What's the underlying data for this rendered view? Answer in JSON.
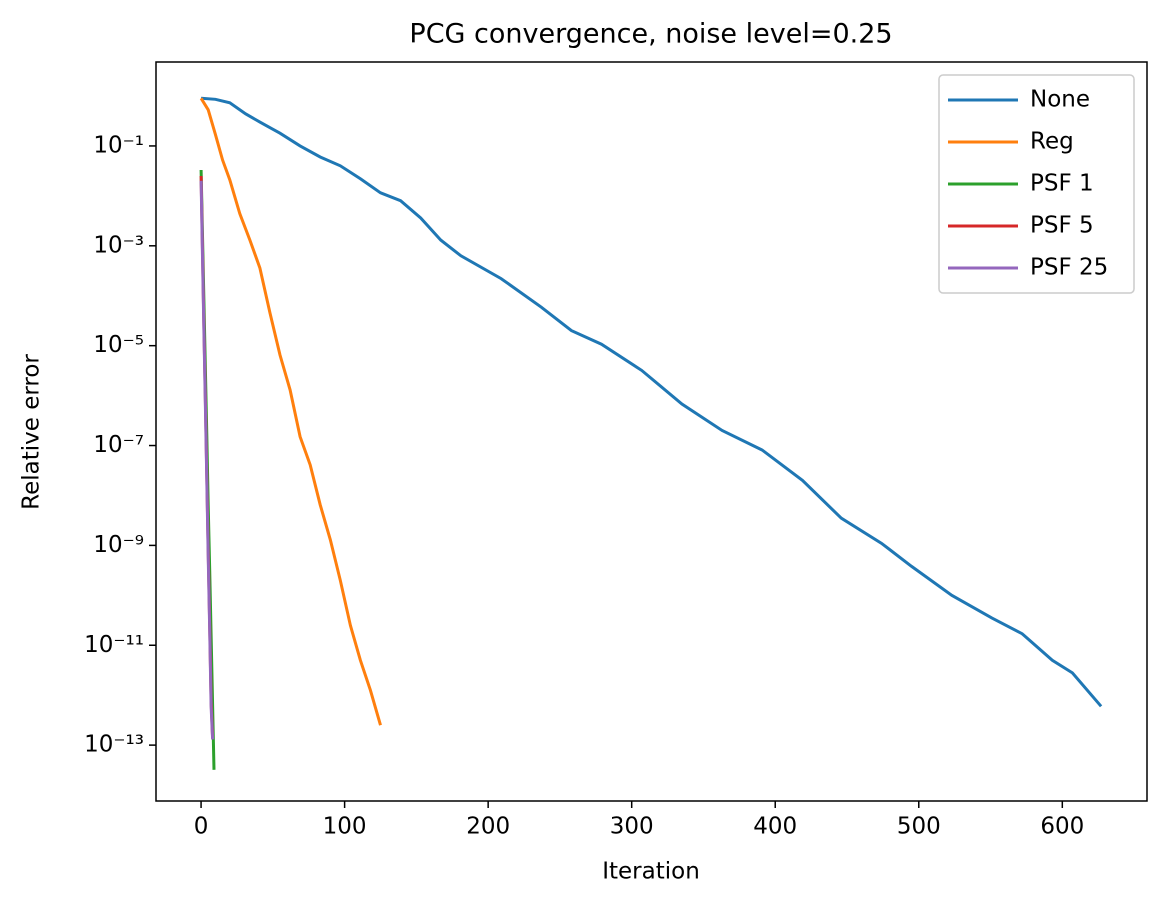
{
  "chart_data": {
    "type": "line",
    "title": "PCG convergence, noise level=0.25",
    "x_label": "Iteration",
    "y_label": "Relative error",
    "log_y": true,
    "legend": "upper right",
    "xlim": [
      -31.4,
      659
    ],
    "xticks": [
      0,
      100,
      200,
      300,
      400,
      500,
      600
    ],
    "ylim": [
      7.6e-15,
      4.8
    ],
    "yticks": [
      {
        "value": 0.1,
        "label": "10⁻¹"
      },
      {
        "value": 0.001,
        "label": "10⁻³"
      },
      {
        "value": 1e-05,
        "label": "10⁻⁵"
      },
      {
        "value": 1e-07,
        "label": "10⁻⁷"
      },
      {
        "value": 1e-09,
        "label": "10⁻⁹"
      },
      {
        "value": 1e-11,
        "label": "10⁻¹¹"
      },
      {
        "value": 1e-13,
        "label": "10⁻¹³"
      }
    ],
    "series": [
      {
        "name": "None",
        "color": "#1f77b4",
        "x": [
          0,
          10,
          20,
          31,
          41,
          55,
          69,
          83,
          97,
          111,
          125,
          139,
          153,
          167,
          181,
          209,
          237,
          258,
          279,
          307,
          335,
          363,
          391,
          419,
          446,
          474,
          495,
          523,
          551,
          572,
          593,
          607,
          627
        ],
        "values": [
          0.9,
          0.86,
          0.73,
          0.44,
          0.3,
          0.18,
          0.1,
          0.06,
          0.04,
          0.022,
          0.0115,
          0.008,
          0.0036,
          0.0013,
          0.00063,
          0.00022,
          5.9e-05,
          2e-05,
          1.07e-05,
          3.2e-06,
          6.8e-07,
          2e-07,
          8.1e-08,
          2e-08,
          3.5e-09,
          1.1e-09,
          3.8e-10,
          1e-10,
          3.5e-11,
          1.7e-11,
          5e-12,
          2.8e-12,
          6e-13
        ]
      },
      {
        "name": "Reg",
        "color": "#ff7f0e",
        "x": [
          0,
          5,
          10,
          15,
          20,
          27,
          34,
          41,
          48,
          55,
          62,
          69,
          76,
          83,
          90,
          97,
          104,
          111,
          118,
          125
        ],
        "values": [
          0.9,
          0.53,
          0.17,
          0.052,
          0.021,
          0.0044,
          0.0013,
          0.00036,
          4.5e-05,
          6.5e-06,
          1.3e-06,
          1.5e-07,
          4.1e-08,
          6.5e-09,
          1.3e-09,
          2e-10,
          2.5e-11,
          5e-12,
          1.26e-12,
          2.5e-13
        ]
      },
      {
        "name": "PSF 1",
        "color": "#2ca02c",
        "x": [
          0,
          1,
          2,
          3,
          4,
          5,
          6,
          7,
          8,
          9
        ],
        "values": [
          0.033,
          0.0016,
          8e-05,
          3.2e-06,
          1.6e-07,
          6.3e-09,
          3.2e-10,
          1.6e-11,
          6.3e-13,
          3.2e-14
        ]
      },
      {
        "name": "PSF 5",
        "color": "#d62728",
        "x": [
          0,
          1,
          2,
          3,
          4,
          5,
          6,
          7,
          8
        ],
        "values": [
          0.025,
          0.0008,
          2.5e-05,
          8e-07,
          2.5e-08,
          8e-10,
          2.5e-11,
          8e-13,
          1.4e-13
        ]
      },
      {
        "name": "PSF 25",
        "color": "#9467bd",
        "x": [
          0,
          1,
          2,
          3,
          4,
          5,
          6,
          7,
          8
        ],
        "values": [
          0.02,
          0.0006,
          2e-05,
          6e-07,
          2e-08,
          6e-10,
          2e-11,
          6e-13,
          1.3e-13
        ]
      }
    ]
  }
}
